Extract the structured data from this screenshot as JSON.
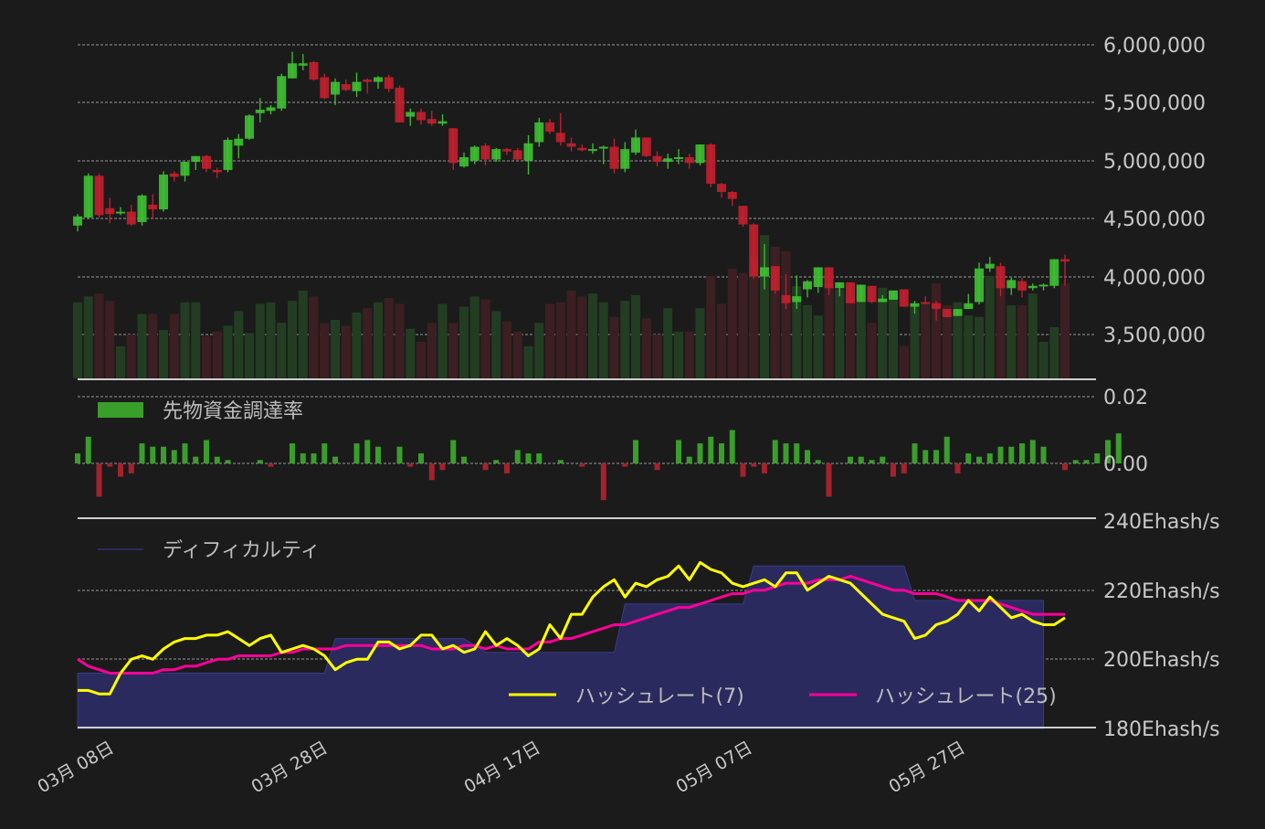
{
  "colors": {
    "background": "#1b1b1b",
    "grid": "#9a9a9a",
    "axis_text": "#c8c8c8",
    "up": "#3fc133",
    "down": "#c3202f",
    "volume_up": "#233d22",
    "volume_down": "#3c1f22",
    "funding_up": "#3a9e2b",
    "funding_down": "#a3222d",
    "difficulty_fill": "#2b2a5e",
    "difficulty_line": "#3a3a8a",
    "hashrate7": "#ffff00",
    "hashrate25": "#ff0099",
    "separator": "#d0d0d0"
  },
  "price_axis": {
    "ticks": [
      "6,000,000",
      "5,500,000",
      "5,000,000",
      "4,500,000",
      "4,000,000",
      "3,500,000"
    ]
  },
  "funding_axis": {
    "ticks": [
      "0.02",
      "0.00"
    ]
  },
  "hashrate_axis": {
    "ticks": [
      "240Ehash/s",
      "220Ehash/s",
      "200Ehash/s",
      "180Ehash/s"
    ]
  },
  "x_axis": {
    "labels": [
      "03月 08日",
      "03月 28日",
      "04月 17日",
      "05月 07日",
      "05月 27日"
    ]
  },
  "legends": {
    "funding": "先物資金調達率",
    "difficulty": "ディフィカルティ",
    "hashrate7": "ハッシュレート(7)",
    "hashrate25": "ハッシュレート(25)"
  },
  "chart_data": [
    {
      "type": "candlestick",
      "title": "Price",
      "ylim": [
        3100000,
        6200000
      ],
      "yticks": [
        6000000,
        5500000,
        5000000,
        4500000,
        4000000,
        3500000
      ],
      "x_labels": [
        "03月 08日",
        "03月 28日",
        "04月 17日",
        "05月 07日",
        "05月 27日"
      ],
      "start_date": "03/06",
      "ohlc": [
        [
          4440000,
          4540000,
          4390000,
          4520000
        ],
        [
          4510000,
          4890000,
          4500000,
          4870000
        ],
        [
          4870000,
          4890000,
          4510000,
          4530000
        ],
        [
          4590000,
          4680000,
          4460000,
          4540000
        ],
        [
          4550000,
          4600000,
          4530000,
          4560000
        ],
        [
          4560000,
          4620000,
          4440000,
          4450000
        ],
        [
          4470000,
          4710000,
          4440000,
          4700000
        ],
        [
          4620000,
          4710000,
          4500000,
          4580000
        ],
        [
          4580000,
          4910000,
          4560000,
          4880000
        ],
        [
          4890000,
          4910000,
          4820000,
          4860000
        ],
        [
          4870000,
          4980000,
          4820000,
          4990000
        ],
        [
          4990000,
          5010000,
          4920000,
          5040000
        ],
        [
          5040000,
          5050000,
          4900000,
          4930000
        ],
        [
          4920000,
          4940000,
          4850000,
          4900000
        ],
        [
          4920000,
          5200000,
          4900000,
          5180000
        ],
        [
          5130000,
          5230000,
          5020000,
          5190000
        ],
        [
          5190000,
          5400000,
          5180000,
          5390000
        ],
        [
          5410000,
          5540000,
          5330000,
          5440000
        ],
        [
          5430000,
          5480000,
          5400000,
          5460000
        ],
        [
          5450000,
          5750000,
          5430000,
          5730000
        ],
        [
          5710000,
          5940000,
          5710000,
          5840000
        ],
        [
          5820000,
          5920000,
          5780000,
          5840000
        ],
        [
          5850000,
          5860000,
          5690000,
          5700000
        ],
        [
          5720000,
          5750000,
          5530000,
          5540000
        ],
        [
          5570000,
          5710000,
          5480000,
          5680000
        ],
        [
          5660000,
          5700000,
          5600000,
          5610000
        ],
        [
          5600000,
          5760000,
          5550000,
          5680000
        ],
        [
          5700000,
          5710000,
          5580000,
          5680000
        ],
        [
          5680000,
          5730000,
          5620000,
          5720000
        ],
        [
          5720000,
          5740000,
          5590000,
          5620000
        ],
        [
          5630000,
          5650000,
          5350000,
          5330000
        ],
        [
          5380000,
          5450000,
          5300000,
          5420000
        ],
        [
          5420000,
          5450000,
          5310000,
          5350000
        ],
        [
          5360000,
          5430000,
          5300000,
          5320000
        ],
        [
          5320000,
          5400000,
          5300000,
          5340000
        ],
        [
          5280000,
          5270000,
          4920000,
          4980000
        ],
        [
          4950000,
          5070000,
          4940000,
          5030000
        ],
        [
          5000000,
          5130000,
          4970000,
          5120000
        ],
        [
          5130000,
          5150000,
          4960000,
          5010000
        ],
        [
          5010000,
          5110000,
          4990000,
          5100000
        ],
        [
          5100000,
          5110000,
          5050000,
          5080000
        ],
        [
          5090000,
          5110000,
          5000000,
          5010000
        ],
        [
          5000000,
          5220000,
          4880000,
          5150000
        ],
        [
          5160000,
          5370000,
          5120000,
          5330000
        ],
        [
          5330000,
          5360000,
          5230000,
          5250000
        ],
        [
          5240000,
          5410000,
          5130000,
          5160000
        ],
        [
          5150000,
          5200000,
          5080000,
          5120000
        ],
        [
          5110000,
          5140000,
          5080000,
          5090000
        ],
        [
          5100000,
          5150000,
          5060000,
          5100000
        ],
        [
          5110000,
          5130000,
          4970000,
          5120000
        ],
        [
          5120000,
          5190000,
          4890000,
          4930000
        ],
        [
          4930000,
          5160000,
          4900000,
          5100000
        ],
        [
          5070000,
          5270000,
          5050000,
          5200000
        ],
        [
          5200000,
          5200000,
          5030000,
          5040000
        ],
        [
          5040000,
          5080000,
          4950000,
          4990000
        ],
        [
          4990000,
          5060000,
          4930000,
          5020000
        ],
        [
          5030000,
          5100000,
          4970000,
          5030000
        ],
        [
          5030000,
          5060000,
          4930000,
          4980000
        ],
        [
          4980000,
          5140000,
          4960000,
          5140000
        ],
        [
          5140000,
          5150000,
          4770000,
          4800000
        ],
        [
          4800000,
          4810000,
          4680000,
          4730000
        ],
        [
          4730000,
          4740000,
          4610000,
          4670000
        ],
        [
          4610000,
          4590000,
          4430000,
          4450000
        ],
        [
          4450000,
          4460000,
          3980000,
          4000000
        ],
        [
          4000000,
          4280000,
          3890000,
          4080000
        ],
        [
          4090000,
          4020000,
          3850000,
          3880000
        ],
        [
          3840000,
          4020000,
          3720000,
          3770000
        ],
        [
          3780000,
          4010000,
          3720000,
          3830000
        ],
        [
          3890000,
          3970000,
          3820000,
          3960000
        ],
        [
          3910000,
          4030000,
          3860000,
          4080000
        ],
        [
          4080000,
          4070000,
          3840000,
          3900000
        ],
        [
          3900000,
          3940000,
          3830000,
          3950000
        ],
        [
          3950000,
          3940000,
          3790000,
          3770000
        ],
        [
          3780000,
          3930000,
          3780000,
          3930000
        ],
        [
          3920000,
          3920000,
          3770000,
          3780000
        ],
        [
          3780000,
          3840000,
          3790000,
          3810000
        ],
        [
          3800000,
          3870000,
          3800000,
          3880000
        ],
        [
          3890000,
          3890000,
          3740000,
          3740000
        ],
        [
          3740000,
          3790000,
          3680000,
          3770000
        ],
        [
          3780000,
          3830000,
          3760000,
          3770000
        ],
        [
          3770000,
          3790000,
          3620000,
          3720000
        ],
        [
          3720000,
          3700000,
          3660000,
          3650000
        ],
        [
          3660000,
          3720000,
          3660000,
          3720000
        ],
        [
          3720000,
          3850000,
          3730000,
          3770000
        ],
        [
          3780000,
          4120000,
          3760000,
          4070000
        ],
        [
          4070000,
          4170000,
          4040000,
          4110000
        ],
        [
          4090000,
          4120000,
          3830000,
          3900000
        ],
        [
          3900000,
          3990000,
          3840000,
          3970000
        ],
        [
          3960000,
          3990000,
          3820000,
          3880000
        ],
        [
          3900000,
          3940000,
          3880000,
          3920000
        ],
        [
          3920000,
          3940000,
          3880000,
          3930000
        ],
        [
          3920000,
          4150000,
          3900000,
          4150000
        ],
        [
          4150000,
          4190000,
          3920000,
          4130000
        ]
      ],
      "volume": [
        52,
        56,
        58,
        53,
        22,
        30,
        44,
        44,
        33,
        44,
        52,
        52,
        29,
        32,
        36,
        46,
        31,
        51,
        52,
        38,
        53,
        60,
        56,
        38,
        40,
        36,
        45,
        48,
        52,
        55,
        51,
        34,
        25,
        38,
        51,
        38,
        49,
        56,
        54,
        46,
        39,
        32,
        22,
        38,
        51,
        52,
        60,
        56,
        58,
        52,
        42,
        53,
        57,
        41,
        30,
        48,
        32,
        32,
        48,
        70,
        51,
        75,
        72,
        82,
        98,
        90,
        87,
        63,
        50,
        43,
        65,
        61,
        55,
        52,
        38,
        62,
        60,
        22,
        50,
        52,
        65,
        50,
        52,
        43,
        42,
        70,
        65,
        50,
        50,
        58,
        25,
        35,
        65,
        66
      ]
    },
    {
      "type": "bar",
      "title": "先物資金調達率",
      "yticks": [
        0.02,
        0.0
      ],
      "values": [
        0.003,
        0.008,
        -0.01,
        -0.001,
        -0.004,
        -0.003,
        0.006,
        0.005,
        0.005,
        0.004,
        0.006,
        0.002,
        0.007,
        0.002,
        0.001,
        0.0,
        0.0,
        0.001,
        -0.001,
        0.0,
        0.006,
        0.003,
        0.003,
        0.006,
        0.002,
        0.0,
        0.006,
        0.007,
        0.005,
        0.0,
        0.005,
        -0.001,
        0.003,
        -0.005,
        -0.002,
        0.007,
        0.002,
        0.0,
        -0.002,
        0.001,
        -0.003,
        0.004,
        0.003,
        0.003,
        0.0,
        0.001,
        0.0,
        -0.001,
        0.0,
        -0.011,
        0.0,
        -0.001,
        0.007,
        0.0,
        -0.002,
        0.0,
        0.007,
        0.002,
        0.006,
        0.008,
        0.006,
        0.01,
        -0.004,
        -0.001,
        -0.003,
        0.007,
        0.006,
        0.006,
        0.004,
        0.001,
        -0.01,
        0.0,
        0.002,
        0.002,
        0.001,
        0.002,
        -0.004,
        -0.003,
        0.006,
        0.004,
        0.004,
        0.008,
        -0.003,
        0.003,
        0.002,
        0.003,
        0.005,
        0.005,
        0.006,
        0.007,
        0.005,
        0.0,
        -0.002,
        0.001,
        0.001,
        0.003,
        0.007,
        0.009
      ]
    },
    {
      "type": "line",
      "title": "Hashrate / Difficulty",
      "yticks": [
        240,
        220,
        200,
        180
      ],
      "ylabel": "Ehash/s",
      "series": [
        {
          "name": "ディフィカルティ",
          "type": "area",
          "values_steps": [
            [
              0,
              196
            ],
            [
              23,
              196
            ],
            [
              24,
              206
            ],
            [
              36,
              206
            ],
            [
              38,
              202
            ],
            [
              50,
              202
            ],
            [
              51,
              216
            ],
            [
              62,
              216
            ],
            [
              63,
              227
            ],
            [
              77,
              227
            ],
            [
              78,
              217
            ],
            [
              90,
              217
            ]
          ]
        },
        {
          "name": "ハッシュレート(7)",
          "values": [
            191,
            191,
            190,
            190,
            196,
            200,
            201,
            200,
            203,
            205,
            206,
            206,
            207,
            207,
            208,
            206,
            204,
            206,
            207,
            202,
            203,
            204,
            203,
            201,
            197,
            199,
            200,
            200,
            205,
            205,
            203,
            204,
            207,
            207,
            203,
            204,
            202,
            203,
            208,
            204,
            206,
            204,
            201,
            203,
            210,
            206,
            213,
            213,
            218,
            221,
            223,
            218,
            222,
            221,
            223,
            224,
            227,
            223,
            228,
            226,
            225,
            222,
            221,
            222,
            223,
            221,
            225,
            225,
            220,
            222,
            224,
            223,
            222,
            219,
            216,
            213,
            212,
            211,
            206,
            207,
            210,
            211,
            213,
            217,
            214,
            218,
            215,
            212,
            213,
            211,
            210,
            210,
            212
          ]
        },
        {
          "name": "ハッシュレート(25)",
          "values": [
            200,
            198,
            197,
            196,
            196,
            196,
            196,
            196,
            197,
            197,
            198,
            198,
            199,
            200,
            200,
            201,
            201,
            201,
            201,
            202,
            202,
            203,
            203,
            203,
            203,
            204,
            204,
            204,
            204,
            204,
            204,
            204,
            204,
            203,
            203,
            203,
            204,
            204,
            203,
            204,
            203,
            203,
            203,
            205,
            205,
            206,
            206,
            207,
            208,
            209,
            210,
            210,
            211,
            212,
            213,
            214,
            215,
            215,
            216,
            217,
            218,
            219,
            219,
            220,
            220,
            221,
            222,
            222,
            222,
            223,
            223,
            223,
            224,
            223,
            222,
            221,
            220,
            220,
            219,
            219,
            219,
            218,
            217,
            217,
            217,
            217,
            216,
            215,
            214,
            213,
            213,
            213,
            213
          ]
        }
      ]
    }
  ]
}
